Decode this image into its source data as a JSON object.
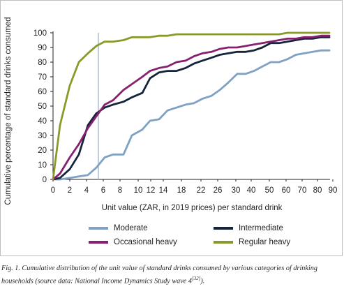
{
  "chart_data": {
    "type": "line",
    "ylabel": "Cumulative percentage of standard drinks consumed",
    "xlabel": "Unit value (ZAR, in 2019 prices) per standard drink",
    "ylim": [
      0,
      100
    ],
    "yticks": [
      0,
      10,
      20,
      30,
      40,
      50,
      60,
      70,
      80,
      90,
      100
    ],
    "x_tick_labels": [
      "0",
      "2",
      "4",
      "6",
      "8",
      "10",
      "12",
      "14",
      "18",
      "22",
      "26",
      "30",
      "40",
      "50",
      "60",
      "70",
      "80",
      "90"
    ],
    "x": [
      0,
      1,
      2,
      3,
      4,
      5,
      6,
      7,
      8,
      9,
      10,
      11,
      12,
      13,
      14,
      15,
      16,
      18,
      20,
      22,
      24,
      26,
      28,
      30,
      35,
      40,
      45,
      50,
      55,
      60,
      65,
      70,
      75,
      80,
      85,
      90,
      95
    ],
    "reference_line_x": 5.3,
    "grid": false,
    "series": [
      {
        "name": "Moderate",
        "color": "#7ea1c4",
        "values": [
          0,
          0,
          1,
          2,
          3,
          8,
          15,
          17,
          17,
          30,
          34,
          40,
          41,
          47,
          49,
          51,
          52,
          55,
          57,
          61,
          66,
          72,
          72,
          74,
          77,
          80,
          80,
          82,
          85,
          86,
          87,
          88,
          88,
          88,
          88,
          88,
          88
        ]
      },
      {
        "name": "Intermediate",
        "color": "#15243b",
        "values": [
          0,
          1,
          7,
          17,
          37,
          45,
          49,
          51,
          53,
          56,
          59,
          69,
          73,
          74,
          74,
          76,
          79,
          81,
          83,
          85,
          86,
          87,
          87,
          88,
          90,
          93,
          93,
          94,
          95,
          96,
          96,
          97,
          97,
          97,
          97,
          97,
          97
        ]
      },
      {
        "name": "Occasional heavy",
        "color": "#86206f",
        "values": [
          0,
          4,
          15,
          24,
          35,
          43,
          51,
          54,
          61,
          65,
          70,
          74,
          76,
          77,
          80,
          81,
          84,
          86,
          87,
          89,
          90,
          90,
          91,
          92,
          93,
          94,
          95,
          96,
          96,
          97,
          97,
          98,
          98,
          98,
          98,
          98,
          98
        ]
      },
      {
        "name": "Regular heavy",
        "color": "#8a9a2a",
        "values": [
          0,
          37,
          64,
          80,
          86,
          91,
          94,
          94,
          95,
          97,
          97,
          97,
          98,
          98,
          99,
          99,
          99,
          99,
          99,
          99,
          99,
          99,
          99,
          99,
          99,
          99,
          99,
          100,
          100,
          100,
          100,
          100,
          100,
          100,
          100,
          100,
          100
        ]
      }
    ]
  },
  "legend": [
    {
      "label": "Moderate",
      "color": "#7ea1c4"
    },
    {
      "label": "Intermediate",
      "color": "#15243b"
    },
    {
      "label": "Occasional heavy",
      "color": "#86206f"
    },
    {
      "label": "Regular heavy",
      "color": "#8a9a2a"
    }
  ],
  "caption": {
    "lead": "Fig. 1. Cumulative distribution of the unit value of standard drinks consumed by various categories of drinking households (source data: National Income Dynamics Study wave 4",
    "ref": "[32]",
    "tail": ")."
  }
}
